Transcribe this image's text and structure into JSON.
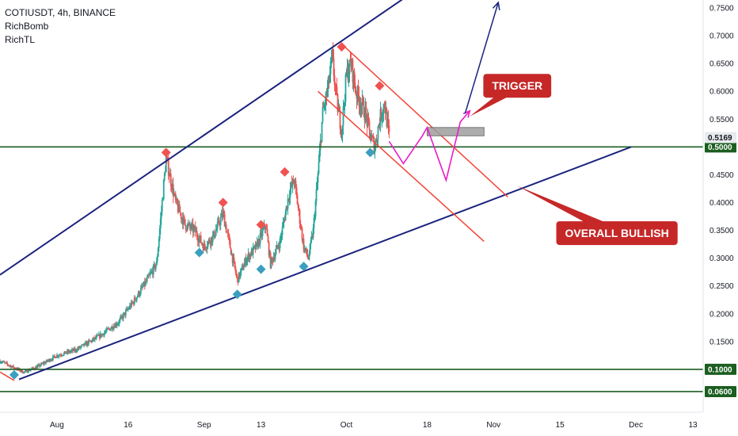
{
  "legend": {
    "symbol_line": "COTIUSDT, 4h, BINANCE",
    "indicators": [
      "RichBomb",
      "RichTL"
    ]
  },
  "colors": {
    "up_candle": "#26a69a",
    "down_candle": "#ef5350",
    "green_level": "#1b5e20",
    "channel_blue": "#1a237e",
    "red_channel": "#f44336",
    "magenta_path": "#e91ec7",
    "callout_red": "#c62828",
    "sell_marker": "#ef5350",
    "buy_marker": "#3a9fc0"
  },
  "chart_data": {
    "type": "candlestick",
    "y_axis": {
      "min": 0.04,
      "max": 0.76,
      "ticks": [
        "0.7500",
        "0.7000",
        "0.6500",
        "0.6000",
        "0.5500",
        "0.4500",
        "0.4000",
        "0.3500",
        "0.3000",
        "0.2500",
        "0.2000",
        "0.1500"
      ],
      "tick_values": [
        0.75,
        0.7,
        0.65,
        0.6,
        0.55,
        0.45,
        0.4,
        0.35,
        0.3,
        0.25,
        0.2,
        0.15
      ]
    },
    "x_axis": {
      "start": "2021-07-20",
      "end": "2021-12-13",
      "ticks": [
        {
          "label": "Aug",
          "date": "2021-08-01"
        },
        {
          "label": "16",
          "date": "2021-08-16"
        },
        {
          "label": "Sep",
          "date": "2021-09-01"
        },
        {
          "label": "13",
          "date": "2021-09-13"
        },
        {
          "label": "Oct",
          "date": "2021-10-01"
        },
        {
          "label": "18",
          "date": "2021-10-18"
        },
        {
          "label": "Nov",
          "date": "2021-11-01"
        },
        {
          "label": "15",
          "date": "2021-11-15"
        },
        {
          "label": "Dec",
          "date": "2021-12-01"
        },
        {
          "label": "13",
          "date": "2021-12-13"
        }
      ]
    },
    "price_series": {
      "last_date": "2021-10-10",
      "points": [
        [
          "2021-07-20",
          0.115
        ],
        [
          "2021-07-25",
          0.095
        ],
        [
          "2021-07-28",
          0.105
        ],
        [
          "2021-08-01",
          0.125
        ],
        [
          "2021-08-05",
          0.135
        ],
        [
          "2021-08-10",
          0.16
        ],
        [
          "2021-08-14",
          0.185
        ],
        [
          "2021-08-17",
          0.22
        ],
        [
          "2021-08-20",
          0.26
        ],
        [
          "2021-08-22",
          0.29
        ],
        [
          "2021-08-24",
          0.48
        ],
        [
          "2021-08-26",
          0.4
        ],
        [
          "2021-08-28",
          0.36
        ],
        [
          "2021-08-30",
          0.35
        ],
        [
          "2021-09-01",
          0.32
        ],
        [
          "2021-09-03",
          0.34
        ],
        [
          "2021-09-05",
          0.38
        ],
        [
          "2021-09-07",
          0.3
        ],
        [
          "2021-09-08",
          0.26
        ],
        [
          "2021-09-10",
          0.3
        ],
        [
          "2021-09-12",
          0.32
        ],
        [
          "2021-09-14",
          0.36
        ],
        [
          "2021-09-15",
          0.29
        ],
        [
          "2021-09-17",
          0.33
        ],
        [
          "2021-09-19",
          0.42
        ],
        [
          "2021-09-20",
          0.44
        ],
        [
          "2021-09-22",
          0.32
        ],
        [
          "2021-09-23",
          0.3
        ],
        [
          "2021-09-24",
          0.35
        ],
        [
          "2021-09-25",
          0.45
        ],
        [
          "2021-09-26",
          0.56
        ],
        [
          "2021-09-27",
          0.6
        ],
        [
          "2021-09-28",
          0.66
        ],
        [
          "2021-09-29",
          0.58
        ],
        [
          "2021-09-30",
          0.53
        ],
        [
          "2021-10-01",
          0.63
        ],
        [
          "2021-10-02",
          0.65
        ],
        [
          "2021-10-03",
          0.6
        ],
        [
          "2021-10-04",
          0.58
        ],
        [
          "2021-10-05",
          0.56
        ],
        [
          "2021-10-06",
          0.52
        ],
        [
          "2021-10-07",
          0.5
        ],
        [
          "2021-10-08",
          0.55
        ],
        [
          "2021-10-09",
          0.58
        ],
        [
          "2021-10-10",
          0.517
        ]
      ]
    },
    "horizontal_levels": [
      {
        "price": 0.5,
        "label": "0.5000"
      },
      {
        "price": 0.1,
        "label": "0.1000"
      },
      {
        "price": 0.06,
        "label": "0.0600"
      }
    ],
    "current_price": {
      "price": 0.5169,
      "label": "0.5169"
    },
    "trendlines": [
      {
        "name": "ascending-channel-top",
        "color": "channel_blue",
        "from": [
          "2021-07-20",
          0.27
        ],
        "to": [
          "2021-10-17",
          0.79
        ]
      },
      {
        "name": "ascending-support",
        "color": "channel_blue",
        "from": [
          "2021-07-24",
          0.082
        ],
        "to": [
          "2021-11-30",
          0.5
        ]
      },
      {
        "name": "red-channel-upper",
        "color": "red_channel",
        "from": [
          "2021-09-30",
          0.685
        ],
        "to": [
          "2021-11-04",
          0.41
        ]
      },
      {
        "name": "red-channel-lower",
        "color": "red_channel",
        "from": [
          "2021-09-25",
          0.6
        ],
        "to": [
          "2021-10-30",
          0.33
        ]
      },
      {
        "name": "red-stub",
        "color": "red_channel",
        "from": [
          "2021-07-20",
          0.095
        ],
        "to": [
          "2021-07-23",
          0.08
        ]
      }
    ],
    "projection_blue": [
      [
        "2021-10-26",
        0.56
      ],
      [
        "2021-11-02",
        0.76
      ]
    ],
    "projection_magenta": [
      [
        "2021-10-10",
        0.51
      ],
      [
        "2021-10-13",
        0.47
      ],
      [
        "2021-10-17",
        0.52
      ],
      [
        "2021-10-18",
        0.535
      ],
      [
        "2021-10-22",
        0.44
      ],
      [
        "2021-10-25",
        0.545
      ],
      [
        "2021-10-27",
        0.565
      ]
    ],
    "trigger_zone": {
      "from": "2021-10-18",
      "to": "2021-10-30",
      "top": 0.535,
      "bottom": 0.52
    },
    "markers_sell": [
      [
        "2021-08-24",
        0.49
      ],
      [
        "2021-09-05",
        0.4
      ],
      [
        "2021-09-13",
        0.36
      ],
      [
        "2021-09-18",
        0.455
      ],
      [
        "2021-09-30",
        0.68
      ],
      [
        "2021-10-08",
        0.61
      ]
    ],
    "markers_buy": [
      [
        "2021-07-23",
        0.09
      ],
      [
        "2021-08-31",
        0.31
      ],
      [
        "2021-09-08",
        0.235
      ],
      [
        "2021-09-13",
        0.28
      ],
      [
        "2021-09-22",
        0.285
      ],
      [
        "2021-10-06",
        0.49
      ]
    ],
    "annotations": [
      {
        "text": "TRIGGER",
        "anchor": [
          "2021-10-27",
          0.555
        ],
        "box_date": "2021-11-06",
        "box_price": 0.61
      },
      {
        "text": "OVERALL BULLISH",
        "anchor": [
          "2021-11-06",
          0.43
        ],
        "box_date": "2021-11-27",
        "box_price": 0.345
      }
    ]
  }
}
